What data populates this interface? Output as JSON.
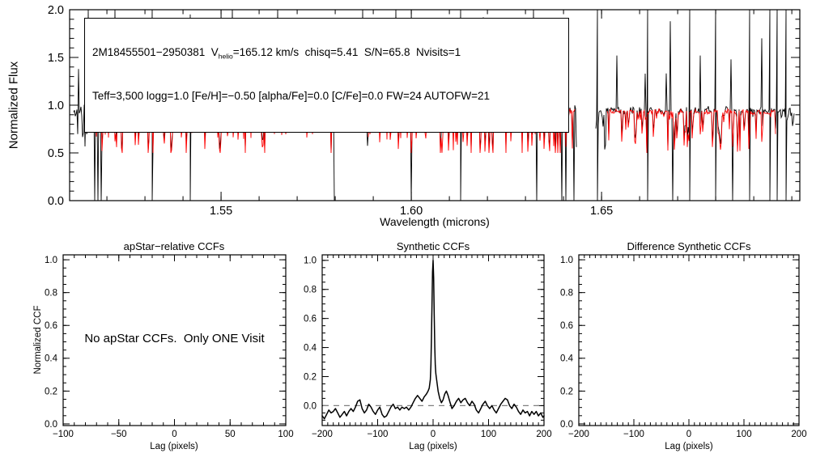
{
  "figure": {
    "background": "#ffffff"
  },
  "annotation": {
    "line1_pre": "2M18455501−2950381  V",
    "line1_sub": "helio",
    "line1_post": "=165.12 km/s  chisq=5.41  S/N=65.8  Nvisits=1",
    "line2": "Teff=3,500 logg=1.0 [Fe/H]=−0.50 [alpha/Fe]=0.0 [C/Fe]=0.0 FW=24 AUTOFW=21"
  },
  "colors": {
    "observed": "#000000",
    "synthetic": "#ff0000",
    "axis": "#000000",
    "zero_dash": "#808080"
  },
  "chart_data": [
    {
      "id": "spectrum",
      "type": "line",
      "xlabel": "Wavelength (microns)",
      "ylabel": "Normalized Flux",
      "xlim": [
        1.5102,
        1.7021
      ],
      "ylim": [
        0.0,
        2.0
      ],
      "xticks": {
        "major": [
          1.55,
          1.6,
          1.65
        ],
        "labels": [
          "1.55",
          "1.60",
          "1.65"
        ],
        "minor_step": 0.01
      },
      "yticks": {
        "major": [
          0.0,
          0.5,
          1.0,
          1.5,
          2.0
        ],
        "labels": [
          "0.0",
          "0.5",
          "1.0",
          "1.5",
          "2.0"
        ],
        "minor_step": 0.1
      },
      "noise_seed": 11,
      "series": [
        {
          "name": "observed",
          "color": "#000000",
          "continuum": 0.952,
          "segments": [
            [
              1.5111,
              1.5798
            ],
            [
              1.5859,
              1.6434
            ],
            [
              1.6483,
              1.7008
            ]
          ]
        },
        {
          "name": "synthetic",
          "color": "#ff0000",
          "continuum": 0.945,
          "segments": [
            [
              1.516,
              1.5797
            ],
            [
              1.5887,
              1.643
            ],
            [
              1.6513,
              1.6958
            ]
          ]
        }
      ],
      "emission_spikes": [
        [
          1.5125,
          1.38
        ],
        [
          1.515,
          2.0
        ],
        [
          1.5222,
          2.0
        ],
        [
          1.5318,
          2.0
        ],
        [
          1.542,
          1.95
        ],
        [
          1.553,
          2.0
        ],
        [
          1.5588,
          1.55
        ],
        [
          1.5648,
          2.0
        ],
        [
          1.572,
          1.65
        ],
        [
          1.577,
          1.38
        ],
        [
          1.5872,
          2.0
        ],
        [
          1.596,
          2.0
        ],
        [
          1.604,
          1.78
        ],
        [
          1.608,
          1.38
        ],
        [
          1.613,
          2.0
        ],
        [
          1.619,
          1.92
        ],
        [
          1.6225,
          1.45
        ],
        [
          1.632,
          2.0
        ],
        [
          1.638,
          1.62
        ],
        [
          1.649,
          2.0
        ],
        [
          1.654,
          1.52
        ],
        [
          1.662,
          2.0
        ],
        [
          1.668,
          1.88
        ],
        [
          1.6732,
          2.0
        ],
        [
          1.676,
          1.52
        ],
        [
          1.68,
          2.0
        ],
        [
          1.684,
          1.48
        ],
        [
          1.689,
          2.0
        ],
        [
          1.692,
          1.7
        ],
        [
          1.6942,
          2.0
        ],
        [
          1.6962,
          2.0
        ],
        [
          1.6985,
          2.0
        ]
      ],
      "zero_spikes": [
        1.5168,
        1.5176,
        1.5185,
        1.5318,
        1.542,
        1.5797,
        1.6,
        1.613,
        1.633,
        1.6395,
        1.6407,
        1.6428,
        1.649,
        1.662,
        1.6688,
        1.6732,
        1.68,
        1.6845,
        1.689,
        1.6942,
        1.6962,
        1.6985
      ]
    },
    {
      "id": "apstar_ccf",
      "type": "empty",
      "title": "apStar−relative CCFs",
      "xlabel": "Lag (pixels)",
      "ylabel": "Normalized CCF",
      "message": "No apStar CCFs.  Only ONE Visit",
      "xlim": [
        -100,
        100
      ],
      "ylim": [
        -0.01,
        1.03
      ],
      "xticks": {
        "major": [
          -100,
          -50,
          0,
          50,
          100
        ],
        "labels": [
          "−100",
          "−50",
          "0",
          "50",
          "100"
        ],
        "minor_step": 10
      },
      "yticks": {
        "major": [
          0.0,
          0.2,
          0.4,
          0.6,
          0.8,
          1.0
        ],
        "labels": [
          "0.0",
          "0.2",
          "0.4",
          "0.6",
          "0.8",
          "1.0"
        ],
        "minor_step": 0.05
      }
    },
    {
      "id": "synthetic_ccf",
      "type": "line",
      "title": "Synthetic CCFs",
      "xlabel": "Lag (pixels)",
      "xlim": [
        -200,
        200
      ],
      "ylim": [
        -0.137,
        1.038
      ],
      "xticks": {
        "major": [
          -200,
          -100,
          0,
          100,
          200
        ],
        "labels": [
          "−200",
          "−100",
          "0",
          "100",
          "200"
        ],
        "minor_step": 10
      },
      "yticks": {
        "major": [
          0.0,
          0.2,
          0.4,
          0.6,
          0.8,
          1.0
        ],
        "labels": [
          "0.0",
          "0.2",
          "0.4",
          "0.6",
          "0.8",
          "1.0"
        ],
        "minor_step": 0.05
      },
      "zero_line": true,
      "points": [
        [
          -200,
          -0.07
        ],
        [
          -196,
          -0.09
        ],
        [
          -192,
          -0.06
        ],
        [
          -188,
          -0.03
        ],
        [
          -184,
          -0.05
        ],
        [
          -180,
          -0.04
        ],
        [
          -176,
          -0.02
        ],
        [
          -172,
          -0.05
        ],
        [
          -168,
          -0.08
        ],
        [
          -164,
          -0.06
        ],
        [
          -160,
          -0.04
        ],
        [
          -156,
          -0.07
        ],
        [
          -152,
          -0.04
        ],
        [
          -148,
          -0.02
        ],
        [
          -144,
          -0.04
        ],
        [
          -140,
          -0.01
        ],
        [
          -136,
          0.03
        ],
        [
          -132,
          0.04
        ],
        [
          -128,
          -0.02
        ],
        [
          -124,
          -0.05
        ],
        [
          -120,
          -0.03
        ],
        [
          -116,
          0.01
        ],
        [
          -112,
          -0.01
        ],
        [
          -108,
          -0.04
        ],
        [
          -104,
          -0.06
        ],
        [
          -100,
          -0.03
        ],
        [
          -96,
          -0.01
        ],
        [
          -92,
          -0.06
        ],
        [
          -88,
          -0.08
        ],
        [
          -84,
          -0.07
        ],
        [
          -80,
          -0.04
        ],
        [
          -76,
          -0.01
        ],
        [
          -72,
          0.01
        ],
        [
          -68,
          -0.02
        ],
        [
          -64,
          -0.01
        ],
        [
          -60,
          -0.03
        ],
        [
          -56,
          -0.01
        ],
        [
          -52,
          -0.02
        ],
        [
          -48,
          -0.01
        ],
        [
          -44,
          -0.03
        ],
        [
          -40,
          -0.01
        ],
        [
          -36,
          0.02
        ],
        [
          -32,
          0.05
        ],
        [
          -28,
          0.07
        ],
        [
          -24,
          0.05
        ],
        [
          -20,
          0.03
        ],
        [
          -16,
          0.06
        ],
        [
          -12,
          0.08
        ],
        [
          -9,
          0.1
        ],
        [
          -7,
          0.12
        ],
        [
          -5,
          0.18
        ],
        [
          -4,
          0.28
        ],
        [
          -3,
          0.45
        ],
        [
          -2,
          0.68
        ],
        [
          -1,
          0.92
        ],
        [
          0,
          1.0
        ],
        [
          1,
          0.88
        ],
        [
          2,
          0.62
        ],
        [
          3,
          0.4
        ],
        [
          4,
          0.28
        ],
        [
          5,
          0.22
        ],
        [
          7,
          0.16
        ],
        [
          9,
          0.1
        ],
        [
          12,
          0.05
        ],
        [
          15,
          0.02
        ],
        [
          18,
          0.04
        ],
        [
          21,
          0.08
        ],
        [
          24,
          0.1
        ],
        [
          27,
          0.07
        ],
        [
          30,
          0.03
        ],
        [
          34,
          -0.02
        ],
        [
          38,
          0.0
        ],
        [
          42,
          0.03
        ],
        [
          46,
          0.05
        ],
        [
          50,
          0.02
        ],
        [
          54,
          0.04
        ],
        [
          58,
          0.05
        ],
        [
          62,
          0.02
        ],
        [
          66,
          0.0
        ],
        [
          70,
          0.03
        ],
        [
          74,
          0.01
        ],
        [
          78,
          -0.03
        ],
        [
          82,
          -0.05
        ],
        [
          86,
          -0.02
        ],
        [
          90,
          0.01
        ],
        [
          94,
          0.03
        ],
        [
          98,
          0.0
        ],
        [
          102,
          -0.02
        ],
        [
          106,
          0.0
        ],
        [
          110,
          -0.03
        ],
        [
          114,
          -0.05
        ],
        [
          118,
          -0.02
        ],
        [
          122,
          0.01
        ],
        [
          126,
          0.03
        ],
        [
          130,
          0.05
        ],
        [
          134,
          0.04
        ],
        [
          138,
          0.0
        ],
        [
          142,
          -0.02
        ],
        [
          146,
          0.01
        ],
        [
          150,
          -0.01
        ],
        [
          154,
          -0.04
        ],
        [
          158,
          -0.06
        ],
        [
          162,
          -0.03
        ],
        [
          166,
          -0.05
        ],
        [
          170,
          -0.04
        ],
        [
          174,
          -0.07
        ],
        [
          178,
          -0.04
        ],
        [
          182,
          -0.06
        ],
        [
          186,
          -0.04
        ],
        [
          190,
          -0.07
        ],
        [
          194,
          -0.05
        ],
        [
          198,
          -0.08
        ],
        [
          200,
          -0.07
        ]
      ]
    },
    {
      "id": "difference_ccf",
      "type": "empty",
      "title": "Difference Synthetic CCFs",
      "xlabel": "Lag (pixels)",
      "xlim": [
        -200,
        200
      ],
      "ylim": [
        -0.01,
        1.03
      ],
      "xticks": {
        "major": [
          -200,
          -100,
          0,
          100,
          200
        ],
        "labels": [
          "−200",
          "−100",
          "0",
          "100",
          "200"
        ],
        "minor_step": 10
      },
      "yticks": {
        "major": [
          0.0,
          0.2,
          0.4,
          0.6,
          0.8,
          1.0
        ],
        "labels": [
          "0.0",
          "0.2",
          "0.4",
          "0.6",
          "0.8",
          "1.0"
        ],
        "minor_step": 0.05
      }
    }
  ]
}
